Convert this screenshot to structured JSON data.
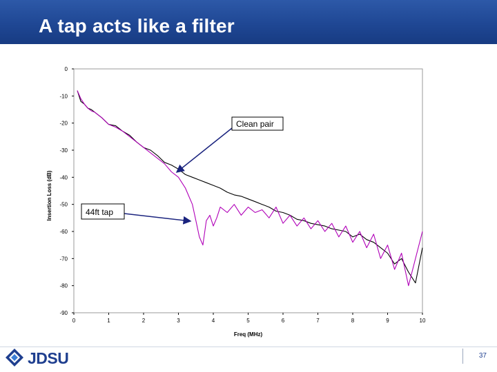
{
  "slide": {
    "title": "A tap acts like a filter",
    "page_number": "37"
  },
  "logo": {
    "text": "JDSU",
    "icon": "jdsu-logo-icon",
    "color": "#1f3f8f"
  },
  "colors": {
    "title_bar": "#1f4794",
    "clean_pair_line": "#000000",
    "tap_line": "#b000b8",
    "arrow": "#1a237e"
  },
  "chart_data": {
    "type": "line",
    "xlabel": "Freq (MHz)",
    "ylabel": "Insertion Loss (dB)",
    "xlim": [
      0,
      10
    ],
    "ylim": [
      -90,
      0
    ],
    "x_ticks": [
      "0",
      "1",
      "2",
      "3",
      "4",
      "5",
      "6",
      "7",
      "8",
      "9",
      "10"
    ],
    "y_ticks": [
      "0",
      "-10",
      "-20",
      "-30",
      "-40",
      "-50",
      "-60",
      "-70",
      "-80",
      "-90"
    ],
    "grid": false,
    "legend": "none",
    "series": [
      {
        "name": "Clean pair",
        "color": "#000000",
        "x": [
          0.1,
          0.2,
          0.3,
          0.4,
          0.5,
          0.6,
          0.8,
          1.0,
          1.2,
          1.4,
          1.6,
          1.8,
          2.0,
          2.2,
          2.4,
          2.6,
          2.8,
          3.0,
          3.2,
          3.4,
          3.6,
          3.8,
          4.0,
          4.2,
          4.4,
          4.6,
          4.8,
          5.0,
          5.2,
          5.4,
          5.6,
          5.8,
          6.0,
          6.2,
          6.4,
          6.6,
          6.8,
          7.0,
          7.2,
          7.4,
          7.6,
          7.8,
          8.0,
          8.2,
          8.4,
          8.6,
          8.8,
          9.0,
          9.2,
          9.4,
          9.6,
          9.8,
          10.0
        ],
        "y": [
          -8,
          -12,
          -13,
          -14.5,
          -15,
          -16,
          -18,
          -20.5,
          -21,
          -23,
          -24.5,
          -27,
          -29,
          -30,
          -32,
          -34.5,
          -35.5,
          -37,
          -39,
          -40,
          -41,
          -42,
          -43,
          -44,
          -45.5,
          -46.5,
          -47,
          -48,
          -49,
          -50,
          -51,
          -52.5,
          -53,
          -54,
          -55.5,
          -56,
          -57,
          -57.5,
          -58,
          -59,
          -59.5,
          -60,
          -62,
          -61,
          -63,
          -64,
          -66,
          -68,
          -72,
          -70,
          -75,
          -79,
          -66
        ]
      },
      {
        "name": "44ft tap",
        "color": "#b000b8",
        "x": [
          0.1,
          0.2,
          0.3,
          0.4,
          0.5,
          0.6,
          0.8,
          1.0,
          1.2,
          1.4,
          1.6,
          1.8,
          2.0,
          2.2,
          2.4,
          2.6,
          2.8,
          3.0,
          3.2,
          3.3,
          3.4,
          3.5,
          3.6,
          3.7,
          3.8,
          3.9,
          4.0,
          4.1,
          4.2,
          4.4,
          4.6,
          4.8,
          5.0,
          5.2,
          5.4,
          5.6,
          5.8,
          6.0,
          6.2,
          6.4,
          6.6,
          6.8,
          7.0,
          7.2,
          7.4,
          7.6,
          7.8,
          8.0,
          8.2,
          8.4,
          8.6,
          8.8,
          9.0,
          9.2,
          9.4,
          9.6,
          9.8,
          10.0
        ],
        "y": [
          -8,
          -11,
          -13,
          -14.5,
          -15.5,
          -16,
          -18,
          -20.5,
          -21.5,
          -23,
          -25,
          -27,
          -29,
          -31,
          -33,
          -35,
          -38,
          -40,
          -44,
          -47,
          -50,
          -56,
          -62,
          -65,
          -56,
          -54,
          -58,
          -55,
          -51,
          -53,
          -50,
          -54,
          -51,
          -53,
          -52,
          -55,
          -51,
          -57,
          -54,
          -58,
          -55,
          -59,
          -56,
          -60,
          -57,
          -62,
          -58,
          -64,
          -60,
          -66,
          -61,
          -70,
          -65,
          -74,
          -68,
          -80,
          -70,
          -60
        ]
      }
    ],
    "annotations": [
      {
        "text": "Clean pair",
        "points_to_series": "Clean pair"
      },
      {
        "text": "44ft tap",
        "points_to_series": "44ft tap"
      }
    ]
  }
}
